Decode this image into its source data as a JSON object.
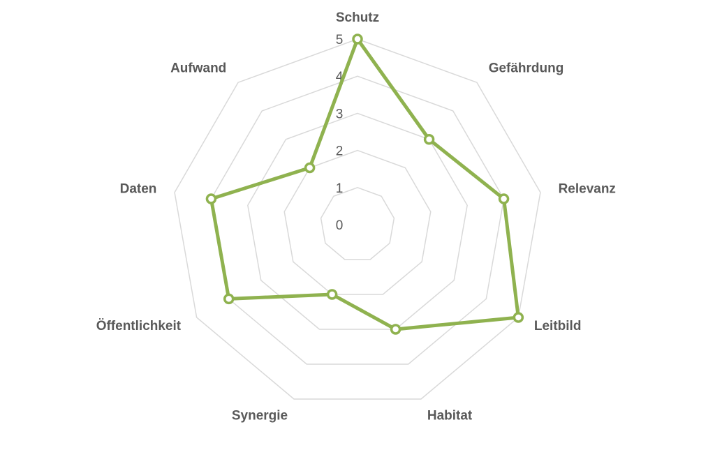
{
  "chart_data": {
    "type": "radar",
    "categories": [
      "Schutz",
      "Gefährdung",
      "Relevanz",
      "Leitbild",
      "Habitat",
      "Synergie",
      "Öffentlichkeit",
      "Daten",
      "Aufwand"
    ],
    "values": [
      5,
      3,
      4,
      5,
      3,
      2,
      4,
      4,
      2
    ],
    "color": "#8fb24f",
    "rlim": [
      0,
      5
    ],
    "rticks": [
      0,
      1,
      2,
      3,
      4,
      5
    ],
    "grid": true
  }
}
